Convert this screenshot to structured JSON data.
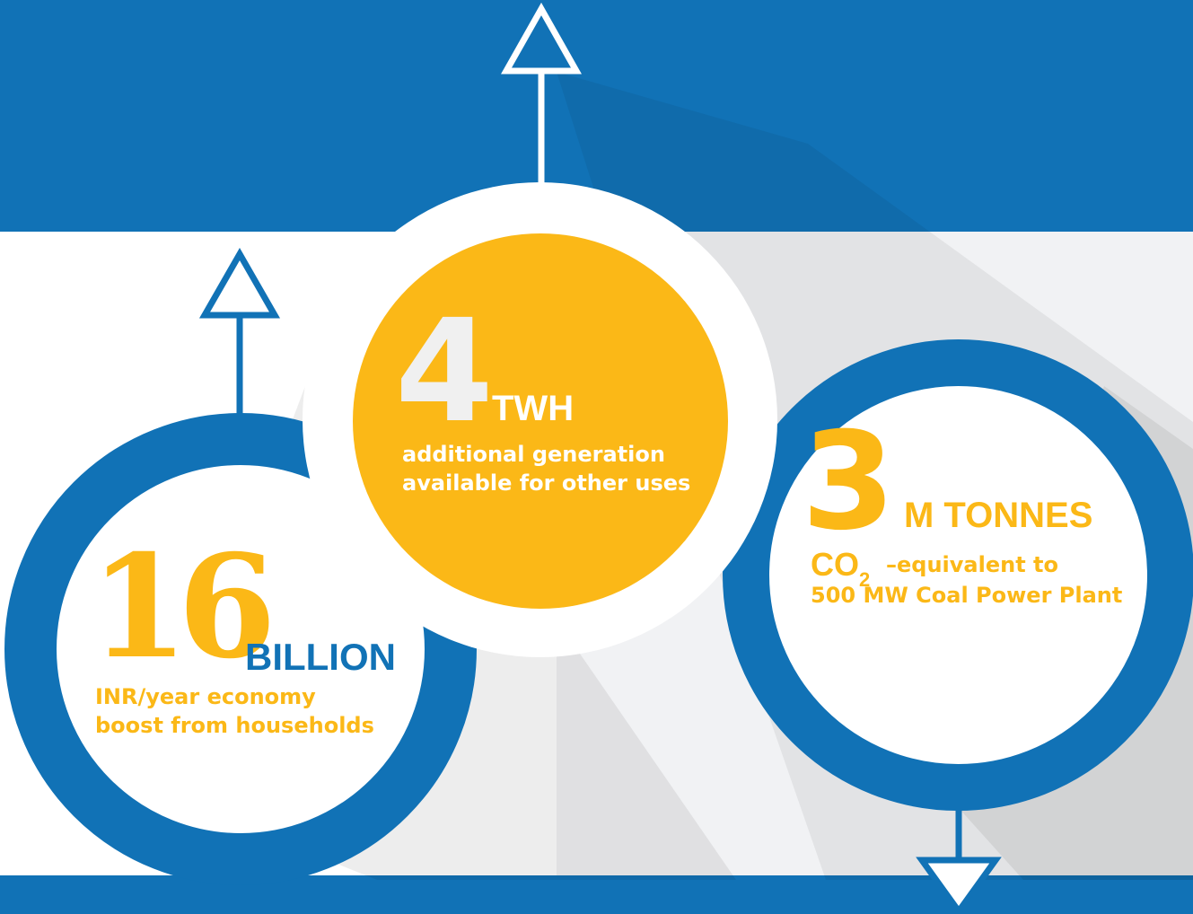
{
  "colors": {
    "blue": "#1172b6",
    "yellow": "#fbb817",
    "white": "#ffffff",
    "panel": "#f1f2f4"
  },
  "stats": {
    "households": {
      "number": "16",
      "unit": "BILLION",
      "description_line1": "INR/year economy",
      "description_line2": "boost from households"
    },
    "generation": {
      "number": "4",
      "unit": "TWH",
      "description_line1": "additional generation",
      "description_line2": "available for other uses"
    },
    "emissions": {
      "number": "3",
      "unit": "M TONNES",
      "co2_main": "CO",
      "co2_sub": "2",
      "description_line1": "–equivalent to",
      "description_line2": "500 MW Coal Power Plant"
    }
  },
  "icons": [
    "arrow-up-icon",
    "arrow-up-icon",
    "arrow-down-icon"
  ]
}
